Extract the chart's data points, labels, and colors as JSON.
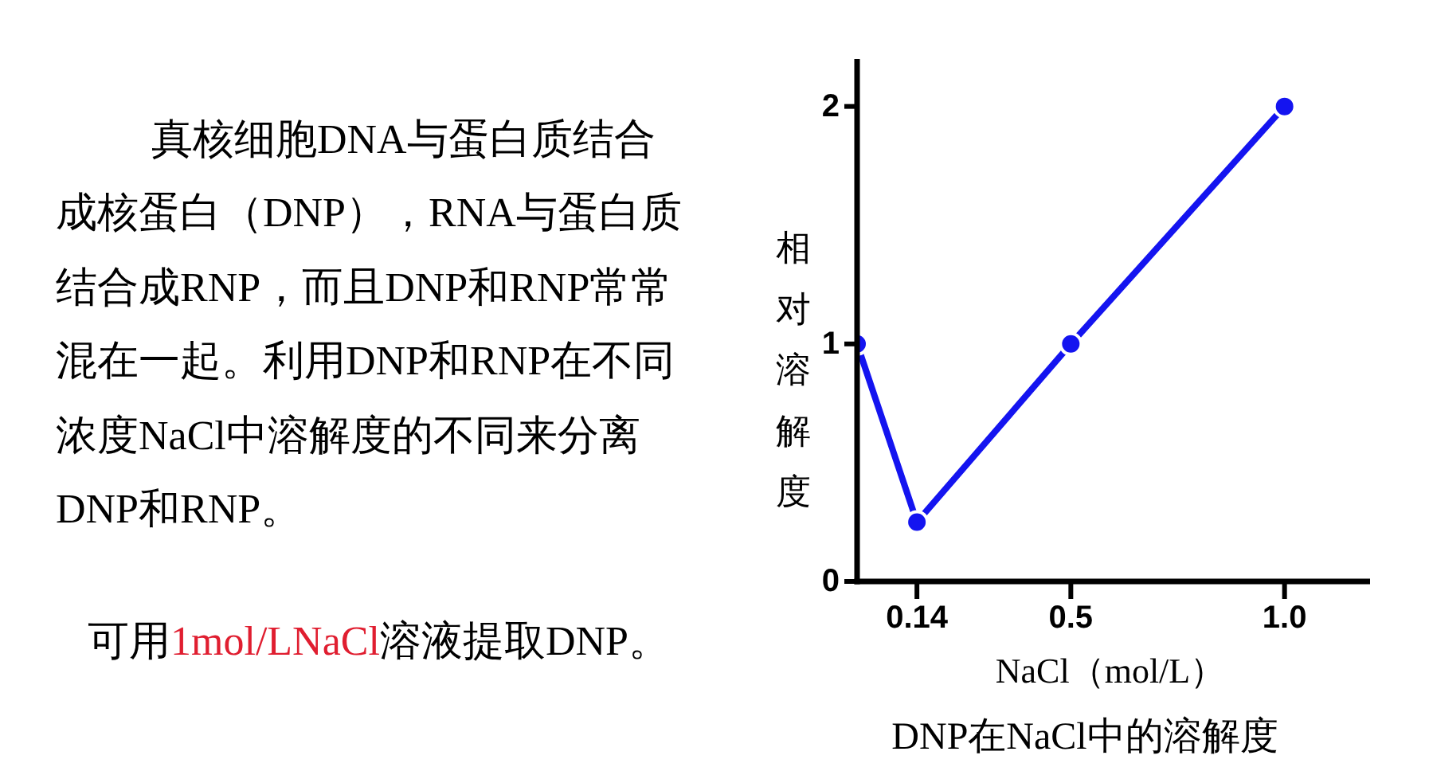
{
  "chart_data": {
    "type": "line",
    "title": "DNP在NaCl中的溶解度",
    "xlabel": "NaCl（mol/L）",
    "ylabel": "相对溶解度",
    "x": [
      0,
      0.14,
      0.5,
      1
    ],
    "values": [
      1,
      0.25,
      1,
      2
    ],
    "color": "#1414f0",
    "marker": "circle",
    "xlim": [
      0,
      1.2
    ],
    "xticks": [
      0.14,
      0.5,
      {
        "value": 1,
        "label": "1.0"
      }
    ],
    "ylim": [
      0,
      2.2
    ],
    "yticks": [
      0,
      1,
      2
    ],
    "annotations": [
      "真核细胞DNA与蛋白质结合成核蛋白（DNP），RNA与蛋白质结合成RNP，而且DNP和RNP常常混在一起。利用DNP和RNP在不同浓度NaCl中溶解度的不同来分离DNP和RNP。",
      "可用",
      "1mol/LNaCl",
      "溶液提取DNP。"
    ]
  }
}
